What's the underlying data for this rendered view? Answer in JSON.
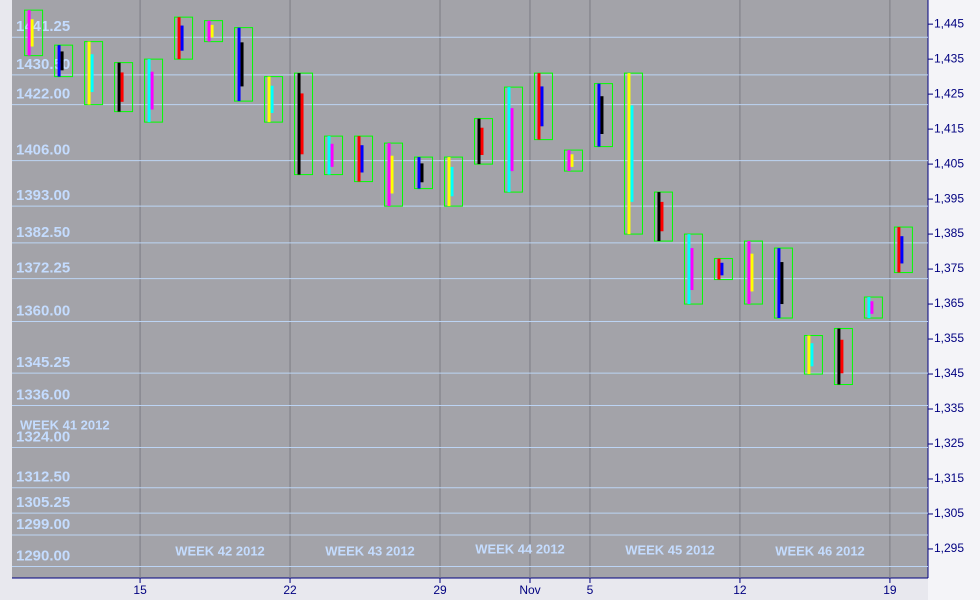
{
  "chart_data": {
    "type": "range",
    "color": "#00ff00",
    "x": [
      -4,
      -3,
      -2,
      -1,
      0,
      1,
      2,
      3,
      4,
      5,
      6,
      7,
      8,
      9,
      10,
      11,
      12,
      13,
      14,
      15,
      16,
      17,
      18,
      19,
      20,
      21,
      22,
      23,
      24,
      25
    ],
    "high": [
      1449,
      1439,
      1440,
      1434,
      1435,
      1447,
      1446,
      1444,
      1430,
      1431,
      1413,
      1413,
      1411,
      1407,
      1407,
      1418,
      1427,
      1431,
      1409,
      1428,
      1431,
      1397,
      1385,
      1378,
      1383,
      1381,
      1356,
      1358,
      1367,
      1387
    ],
    "low": [
      1436,
      1430,
      1422,
      1420,
      1417,
      1435,
      1440,
      1423,
      1417,
      1402,
      1402,
      1400,
      1393,
      1398,
      1393,
      1405,
      1397,
      1412,
      1403,
      1410,
      1385,
      1383,
      1365,
      1372,
      1365,
      1361,
      1345,
      1342,
      1361,
      1374
    ],
    "xlim": [
      -4.27,
      26.27
    ],
    "xticks": [
      {
        "value": 0,
        "label": "15"
      },
      {
        "value": 5,
        "label": "22"
      },
      {
        "value": 10,
        "label": "29"
      },
      {
        "value": 13,
        "label": "Nov"
      },
      {
        "value": 15,
        "label": "5"
      },
      {
        "value": 20,
        "label": "12"
      },
      {
        "value": 25,
        "label": "19"
      }
    ],
    "ylim": [
      1286.7,
      1451.9
    ],
    "yticks": [
      {
        "value": 1445,
        "label": "1,445"
      },
      {
        "value": 1435,
        "label": "1,435"
      },
      {
        "value": 1425,
        "label": "1,425"
      },
      {
        "value": 1415,
        "label": "1,415"
      },
      {
        "value": 1405,
        "label": "1,405"
      },
      {
        "value": 1395,
        "label": "1,395"
      },
      {
        "value": 1385,
        "label": "1,385"
      },
      {
        "value": 1375,
        "label": "1,375"
      },
      {
        "value": 1365,
        "label": "1,365"
      },
      {
        "value": 1355,
        "label": "1,355"
      },
      {
        "value": 1345,
        "label": "1,345"
      },
      {
        "value": 1335,
        "label": "1,335"
      },
      {
        "value": 1325,
        "label": "1,325"
      },
      {
        "value": 1315,
        "label": "1,315"
      },
      {
        "value": 1305,
        "label": "1,305"
      },
      {
        "value": 1295,
        "label": "1,295"
      }
    ],
    "levels": [
      {
        "value": 1441.25,
        "label": "1441.25"
      },
      {
        "value": 1430.5,
        "label": "1430.50"
      },
      {
        "value": 1422,
        "label": "1422.00"
      },
      {
        "value": 1406,
        "label": "1406.00"
      },
      {
        "value": 1393,
        "label": "1393.00"
      },
      {
        "value": 1382.5,
        "label": "1382.50"
      },
      {
        "value": 1372.25,
        "label": "1372.25"
      },
      {
        "value": 1360,
        "label": "1360.00"
      },
      {
        "value": 1345.25,
        "label": "1345.25"
      },
      {
        "value": 1336,
        "label": "1336.00"
      },
      {
        "value": 1324,
        "label": "1324.00"
      },
      {
        "value": 1312.5,
        "label": "1312.50"
      },
      {
        "value": 1305.25,
        "label": "1305.25"
      },
      {
        "value": 1299,
        "label": "1299.00"
      },
      {
        "value": 1290,
        "label": "1290.00"
      }
    ],
    "annotations": [
      "WEEK 41 2012",
      "WEEK 42 2012",
      "WEEK 43 2012",
      "WEEK 44 2012",
      "WEEK 45 2012",
      "WEEK 46 2012"
    ]
  }
}
